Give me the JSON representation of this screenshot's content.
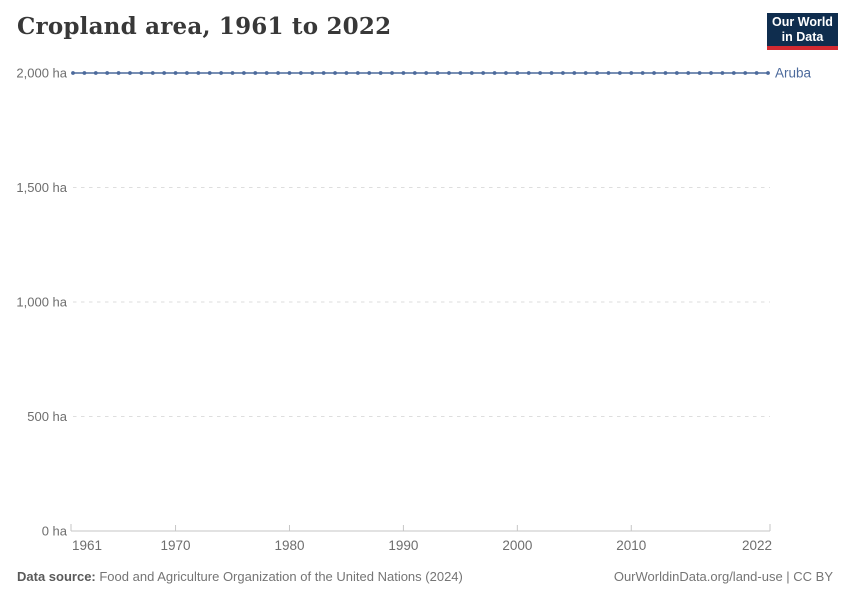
{
  "header": {
    "title": "Cropland area, 1961 to 2022",
    "logo": {
      "line1": "Our World",
      "line2": "in Data",
      "bg_color": "#0f2d4e",
      "accent_color": "#d32a31"
    }
  },
  "chart_data": {
    "type": "line",
    "title": "Cropland area, 1961 to 2022",
    "xlabel": "",
    "ylabel": "",
    "xlim": [
      1961,
      2022
    ],
    "ylim": [
      0,
      2000
    ],
    "grid": true,
    "x_ticks": [
      1961,
      1970,
      1980,
      1990,
      2000,
      2010,
      2022
    ],
    "y_ticks": [
      0,
      500,
      1000,
      1500,
      2000
    ],
    "y_tick_labels": [
      "0 ha",
      "500 ha",
      "1,000 ha",
      "1,500 ha",
      "2,000 ha"
    ],
    "legend_position": "right-of-line",
    "colors": {
      "grid": "#dedede",
      "axis": "#c6c6c6",
      "tick_label": "#6e6e6e"
    },
    "series": [
      {
        "name": "Aruba",
        "color": "#4c6a9c",
        "x": [
          1961,
          1962,
          1963,
          1964,
          1965,
          1966,
          1967,
          1968,
          1969,
          1970,
          1971,
          1972,
          1973,
          1974,
          1975,
          1976,
          1977,
          1978,
          1979,
          1980,
          1981,
          1982,
          1983,
          1984,
          1985,
          1986,
          1987,
          1988,
          1989,
          1990,
          1991,
          1992,
          1993,
          1994,
          1995,
          1996,
          1997,
          1998,
          1999,
          2000,
          2001,
          2002,
          2003,
          2004,
          2005,
          2006,
          2007,
          2008,
          2009,
          2010,
          2011,
          2012,
          2013,
          2014,
          2015,
          2016,
          2017,
          2018,
          2019,
          2020,
          2021,
          2022
        ],
        "values": [
          2000,
          2000,
          2000,
          2000,
          2000,
          2000,
          2000,
          2000,
          2000,
          2000,
          2000,
          2000,
          2000,
          2000,
          2000,
          2000,
          2000,
          2000,
          2000,
          2000,
          2000,
          2000,
          2000,
          2000,
          2000,
          2000,
          2000,
          2000,
          2000,
          2000,
          2000,
          2000,
          2000,
          2000,
          2000,
          2000,
          2000,
          2000,
          2000,
          2000,
          2000,
          2000,
          2000,
          2000,
          2000,
          2000,
          2000,
          2000,
          2000,
          2000,
          2000,
          2000,
          2000,
          2000,
          2000,
          2000,
          2000,
          2000,
          2000,
          2000,
          2000,
          2000
        ]
      }
    ]
  },
  "footer": {
    "source_label": "Data source:",
    "source_text": " Food and Agriculture Organization of the United Nations (2024)",
    "credit": "OurWorldinData.org/land-use | CC BY"
  }
}
